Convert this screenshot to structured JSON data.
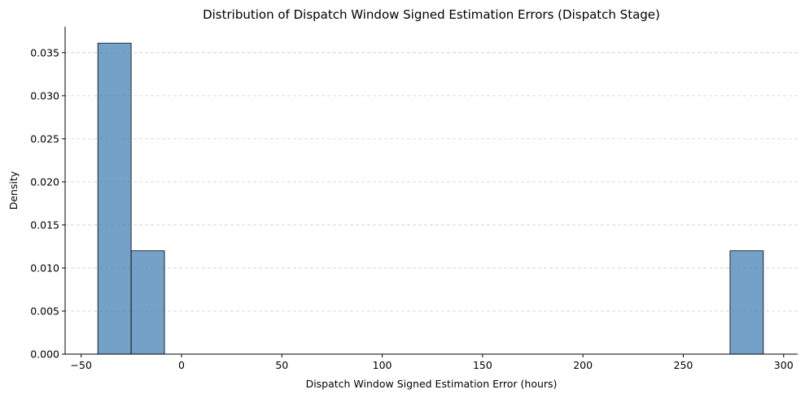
{
  "chart_data": {
    "type": "bar",
    "title": "Distribution of Dispatch Window Signed Estimation Errors (Dispatch Stage)",
    "xlabel": "Dispatch Window Signed Estimation Error (hours)",
    "ylabel": "Density",
    "xlim": [
      -58,
      307
    ],
    "ylim": [
      0,
      0.038
    ],
    "x_ticks": [
      -50,
      0,
      50,
      100,
      150,
      200,
      250,
      300
    ],
    "y_ticks": [
      0.0,
      0.005,
      0.01,
      0.015,
      0.02,
      0.025,
      0.03,
      0.035
    ],
    "x_tick_labels": [
      "−50",
      "0",
      "50",
      "100",
      "150",
      "200",
      "250",
      "300"
    ],
    "y_tick_labels": [
      "0.000",
      "0.005",
      "0.010",
      "0.015",
      "0.020",
      "0.025",
      "0.030",
      "0.035"
    ],
    "bins": [
      {
        "x0": -41.7,
        "x1": -25.1,
        "density": 0.0361
      },
      {
        "x0": -25.1,
        "x1": -8.5,
        "density": 0.012
      },
      {
        "x0": 273.3,
        "x1": 289.9,
        "density": 0.012
      }
    ],
    "bar_color": "#4682B4",
    "bar_edge_color": "#000000",
    "grid": "y-dashed",
    "legend": "none"
  }
}
